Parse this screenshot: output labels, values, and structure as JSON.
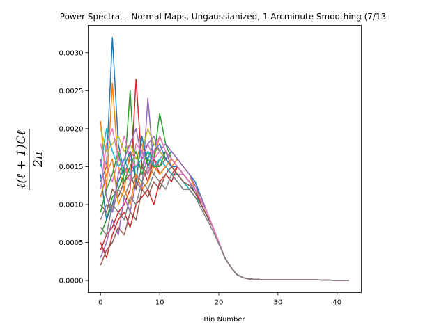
{
  "chart_data": {
    "type": "line",
    "title": "Power Spectra -- Normal Maps, Ungaussianized, 1 Arcminute Smoothing (7/13",
    "xlabel": "Bin Number",
    "ylabel": "ℓ(ℓ+1)Cℓ / 2π",
    "ylabel_numerator": "ℓ(ℓ + 1)Cℓ",
    "ylabel_denominator": "2π",
    "xlim": [
      -2.1,
      44.1
    ],
    "ylim": [
      -0.00016,
      0.00336
    ],
    "xticks": [
      0,
      10,
      20,
      30,
      40
    ],
    "xtick_labels": [
      "0",
      "10",
      "20",
      "30",
      "40"
    ],
    "yticks": [
      0.0,
      0.0005,
      0.001,
      0.0015,
      0.002,
      0.0025,
      0.003
    ],
    "ytick_labels": [
      "0.0000",
      "0.0005",
      "0.0010",
      "0.0015",
      "0.0020",
      "0.0025",
      "0.0030"
    ],
    "grid": false,
    "colors": [
      "#1f77b4",
      "#ff7f0e",
      "#2ca02c",
      "#d62728",
      "#9467bd",
      "#8c564b",
      "#e377c2",
      "#7f7f7f",
      "#bcbd22",
      "#17becf"
    ],
    "x": [
      0,
      1,
      2,
      3,
      4,
      5,
      6,
      7,
      8,
      9,
      10,
      11,
      12,
      13,
      14,
      15,
      16,
      17,
      18,
      19,
      20,
      21,
      22,
      23,
      24,
      25,
      26,
      27,
      28,
      29,
      30,
      31,
      32,
      33,
      34,
      35,
      36,
      37,
      38,
      39,
      40,
      41,
      42
    ],
    "series": [
      {
        "values": [
          0.0013,
          0.0015,
          0.0032,
          0.0018,
          0.0014,
          0.0016,
          0.0015,
          0.0017,
          0.0016,
          0.0018,
          0.0017,
          0.0016,
          0.0017,
          0.0016,
          0.0015,
          0.0014,
          0.0013,
          0.0011,
          0.0009,
          0.0007,
          0.0005,
          0.0003,
          0.00018,
          8e-05,
          4e-05,
          2e-05,
          1.5e-05,
          1.2e-05,
          1e-05,
          1e-05,
          9e-06,
          8e-06,
          8e-06,
          8e-06,
          8e-06,
          8e-06,
          8e-06,
          7e-06,
          5e-06,
          3e-06,
          2e-06,
          2e-06,
          2e-06
        ]
      },
      {
        "values": [
          0.0021,
          0.0012,
          0.0026,
          0.0015,
          0.0012,
          0.0017,
          0.0016,
          0.0018,
          0.0015,
          0.0016,
          0.0019,
          0.0017,
          0.0015,
          0.0016,
          0.0015,
          0.0014,
          0.0012,
          0.0011,
          0.0009,
          0.0007,
          0.0005,
          0.0003,
          0.00018,
          8e-05,
          4e-05,
          2e-05,
          1.5e-05,
          1.2e-05,
          1e-05,
          1e-05,
          9e-06,
          8e-06,
          8e-06,
          8e-06,
          8e-06,
          8e-06,
          8e-06,
          7e-06,
          5e-06,
          3e-06,
          2e-06,
          2e-06,
          2e-06
        ]
      },
      {
        "values": [
          0.0006,
          0.0008,
          0.0011,
          0.0012,
          0.0014,
          0.0025,
          0.0012,
          0.0015,
          0.0017,
          0.0016,
          0.0022,
          0.0018,
          0.0016,
          0.0015,
          0.0014,
          0.0013,
          0.0012,
          0.0011,
          0.0009,
          0.0007,
          0.0005,
          0.0003,
          0.00018,
          8e-05,
          4e-05,
          2e-05,
          1.5e-05,
          1.2e-05,
          1e-05,
          1e-05,
          9e-06,
          8e-06,
          8e-06,
          8e-06,
          8e-06,
          8e-06,
          8e-06,
          7e-06,
          5e-06,
          3e-06,
          2e-06,
          2e-06,
          2e-06
        ]
      },
      {
        "values": [
          0.0004,
          0.0006,
          0.0007,
          0.0009,
          0.001,
          0.0012,
          0.00265,
          0.0015,
          0.0013,
          0.0016,
          0.0014,
          0.0015,
          0.0014,
          0.0015,
          0.0014,
          0.0013,
          0.0012,
          0.001,
          0.00085,
          0.0007,
          0.0005,
          0.0003,
          0.00018,
          8e-05,
          4e-05,
          2e-05,
          1.5e-05,
          1.2e-05,
          1e-05,
          1e-05,
          9e-06,
          8e-06,
          8e-06,
          8e-06,
          8e-06,
          8e-06,
          8e-06,
          7e-06,
          5e-06,
          3e-06,
          2e-06,
          2e-06,
          2e-06
        ]
      },
      {
        "values": [
          0.0003,
          0.0005,
          0.0008,
          0.0006,
          0.0011,
          0.0009,
          0.0013,
          0.0012,
          0.0024,
          0.0015,
          0.0016,
          0.0017,
          0.0015,
          0.0014,
          0.0013,
          0.0012,
          0.0011,
          0.001,
          0.00085,
          0.0007,
          0.0005,
          0.0003,
          0.00018,
          8e-05,
          4e-05,
          2e-05,
          1.5e-05,
          1.2e-05,
          1e-05,
          1e-05,
          9e-06,
          8e-06,
          8e-06,
          8e-06,
          8e-06,
          8e-06,
          8e-06,
          7e-06,
          5e-06,
          3e-06,
          2e-06,
          2e-06,
          2e-06
        ]
      },
      {
        "values": [
          0.001,
          0.0009,
          0.0012,
          0.0011,
          0.0013,
          0.0014,
          0.0012,
          0.0015,
          0.0014,
          0.0016,
          0.0015,
          0.0016,
          0.0015,
          0.0014,
          0.0013,
          0.0012,
          0.0011,
          0.001,
          0.00085,
          0.0007,
          0.0005,
          0.0003,
          0.00018,
          8e-05,
          4e-05,
          2e-05,
          1.5e-05,
          1.2e-05,
          1e-05,
          1e-05,
          9e-06,
          8e-06,
          8e-06,
          8e-06,
          8e-06,
          8e-06,
          8e-06,
          7e-06,
          5e-06,
          3e-06,
          2e-06,
          2e-06,
          2e-06
        ]
      },
      {
        "values": [
          0.0018,
          0.0015,
          0.0013,
          0.0016,
          0.0019,
          0.0016,
          0.0015,
          0.0017,
          0.0018,
          0.0016,
          0.0017,
          0.0016,
          0.0015,
          0.0014,
          0.0014,
          0.0013,
          0.0012,
          0.00105,
          0.0009,
          0.0007,
          0.0005,
          0.0003,
          0.00018,
          8e-05,
          4e-05,
          2e-05,
          1.5e-05,
          1.2e-05,
          1e-05,
          1e-05,
          9e-06,
          8e-06,
          8e-06,
          8e-06,
          8e-06,
          8e-06,
          8e-06,
          7e-06,
          5e-06,
          3e-06,
          2e-06,
          2e-06,
          2e-06
        ]
      },
      {
        "values": [
          0.0008,
          0.001,
          0.0009,
          0.0012,
          0.0011,
          0.0013,
          0.0014,
          0.0013,
          0.0015,
          0.0014,
          0.0016,
          0.0015,
          0.0014,
          0.0013,
          0.0012,
          0.0012,
          0.0011,
          0.001,
          0.00085,
          0.0007,
          0.0005,
          0.0003,
          0.00018,
          8e-05,
          4e-05,
          2e-05,
          1.5e-05,
          1.2e-05,
          1e-05,
          1e-05,
          9e-06,
          8e-06,
          8e-06,
          8e-06,
          8e-06,
          8e-06,
          8e-06,
          7e-06,
          5e-06,
          3e-06,
          2e-06,
          2e-06,
          2e-06
        ]
      },
      {
        "values": [
          0.002,
          0.0017,
          0.0018,
          0.0019,
          0.0017,
          0.0018,
          0.0016,
          0.0017,
          0.002,
          0.0018,
          0.0017,
          0.0016,
          0.0015,
          0.0014,
          0.0013,
          0.0012,
          0.0011,
          0.001,
          0.00085,
          0.0007,
          0.0005,
          0.0003,
          0.00018,
          8e-05,
          4e-05,
          2e-05,
          1.5e-05,
          1.2e-05,
          1e-05,
          1e-05,
          9e-06,
          8e-06,
          8e-06,
          8e-06,
          8e-06,
          8e-06,
          8e-06,
          7e-06,
          5e-06,
          3e-06,
          2e-06,
          2e-06,
          2e-06
        ]
      },
      {
        "values": [
          0.0015,
          0.002,
          0.0017,
          0.0015,
          0.0016,
          0.0014,
          0.0015,
          0.0016,
          0.0017,
          0.0015,
          0.0016,
          0.0015,
          0.0014,
          0.0014,
          0.0013,
          0.0012,
          0.0011,
          0.001,
          0.00085,
          0.0007,
          0.0005,
          0.0003,
          0.00018,
          8e-05,
          4e-05,
          2e-05,
          1.5e-05,
          1.2e-05,
          1e-05,
          1e-05,
          9e-06,
          8e-06,
          8e-06,
          8e-06,
          8e-06,
          8e-06,
          8e-06,
          7e-06,
          5e-06,
          3e-06,
          2e-06,
          2e-06,
          2e-06
        ]
      },
      {
        "values": [
          0.0014,
          0.0008,
          0.001,
          0.0013,
          0.0015,
          0.0017,
          0.0013,
          0.0019,
          0.0015,
          0.0017,
          0.0018,
          0.0016,
          0.0015,
          0.0015,
          0.0014,
          0.0013,
          0.00115,
          0.001,
          0.00085,
          0.0007,
          0.0005,
          0.0003,
          0.00018,
          8e-05,
          4e-05,
          2e-05,
          1.5e-05,
          1.2e-05,
          1e-05,
          1e-05,
          9e-06,
          8e-06,
          8e-06,
          8e-06,
          8e-06,
          8e-06,
          8e-06,
          7e-06,
          5e-06,
          3e-06,
          2e-06,
          2e-06,
          2e-06
        ]
      },
      {
        "values": [
          0.0011,
          0.0014,
          0.0016,
          0.001,
          0.0012,
          0.001,
          0.0014,
          0.0012,
          0.0013,
          0.0015,
          0.0014,
          0.0015,
          0.0016,
          0.0015,
          0.0014,
          0.0013,
          0.0012,
          0.00105,
          0.0009,
          0.0007,
          0.0005,
          0.0003,
          0.00018,
          8e-05,
          4e-05,
          2e-05,
          1.5e-05,
          1.2e-05,
          1e-05,
          1e-05,
          9e-06,
          8e-06,
          8e-06,
          8e-06,
          8e-06,
          8e-06,
          8e-06,
          7e-06,
          5e-06,
          3e-06,
          2e-06,
          2e-06,
          2e-06
        ]
      },
      {
        "values": [
          0.0009,
          0.0012,
          0.0014,
          0.0017,
          0.0013,
          0.0015,
          0.0017,
          0.0014,
          0.0016,
          0.0015,
          0.0015,
          0.0017,
          0.0016,
          0.0015,
          0.0014,
          0.0013,
          0.0012,
          0.00105,
          0.0009,
          0.0007,
          0.0005,
          0.0003,
          0.00018,
          8e-05,
          4e-05,
          2e-05,
          1.5e-05,
          1.2e-05,
          1e-05,
          1e-05,
          9e-06,
          8e-06,
          8e-06,
          8e-06,
          8e-06,
          8e-06,
          8e-06,
          7e-06,
          5e-06,
          3e-06,
          2e-06,
          2e-06,
          2e-06
        ]
      },
      {
        "values": [
          0.0005,
          0.0003,
          0.0006,
          0.0008,
          0.0009,
          0.0007,
          0.001,
          0.0011,
          0.0012,
          0.001,
          0.0013,
          0.0014,
          0.0013,
          0.0015,
          0.0014,
          0.0013,
          0.0012,
          0.001,
          0.00085,
          0.0007,
          0.0005,
          0.0003,
          0.00018,
          8e-05,
          4e-05,
          2e-05,
          1.5e-05,
          1.2e-05,
          1e-05,
          1e-05,
          9e-06,
          8e-06,
          8e-06,
          8e-06,
          8e-06,
          8e-06,
          8e-06,
          7e-06,
          5e-06,
          3e-06,
          2e-06,
          2e-06,
          2e-06
        ]
      },
      {
        "values": [
          0.0016,
          0.0011,
          0.0009,
          0.0014,
          0.0016,
          0.0018,
          0.002,
          0.0016,
          0.0018,
          0.0019,
          0.0017,
          0.0018,
          0.0017,
          0.0016,
          0.0015,
          0.0014,
          0.00125,
          0.0011,
          0.0009,
          0.0007,
          0.0005,
          0.0003,
          0.00018,
          8e-05,
          4e-05,
          2e-05,
          1.5e-05,
          1.2e-05,
          1e-05,
          1e-05,
          9e-06,
          8e-06,
          8e-06,
          8e-06,
          8e-06,
          8e-06,
          8e-06,
          7e-06,
          5e-06,
          3e-06,
          2e-06,
          2e-06,
          2e-06
        ]
      },
      {
        "values": [
          0.0002,
          0.0004,
          0.0005,
          0.0007,
          0.0006,
          0.0009,
          0.0008,
          0.0012,
          0.0011,
          0.0013,
          0.0012,
          0.0014,
          0.0015,
          0.0014,
          0.0013,
          0.00125,
          0.00115,
          0.001,
          0.00085,
          0.0007,
          0.0005,
          0.0003,
          0.00018,
          8e-05,
          4e-05,
          2e-05,
          1.5e-05,
          1.2e-05,
          1e-05,
          1e-05,
          9e-06,
          8e-06,
          8e-06,
          8e-06,
          8e-06,
          8e-06,
          8e-06,
          7e-06,
          5e-06,
          3e-06,
          2e-06,
          2e-06,
          2e-06
        ]
      },
      {
        "values": [
          0.0012,
          0.0018,
          0.002,
          0.0016,
          0.0015,
          0.0013,
          0.0018,
          0.0017,
          0.0014,
          0.0017,
          0.0019,
          0.0017,
          0.0016,
          0.0015,
          0.0014,
          0.0013,
          0.0012,
          0.00105,
          0.0009,
          0.0007,
          0.0005,
          0.0003,
          0.00018,
          8e-05,
          4e-05,
          2e-05,
          1.5e-05,
          1.2e-05,
          1e-05,
          1e-05,
          9e-06,
          8e-06,
          8e-06,
          8e-06,
          8e-06,
          8e-06,
          8e-06,
          7e-06,
          5e-06,
          3e-06,
          2e-06,
          2e-06,
          2e-06
        ]
      },
      {
        "values": [
          0.0007,
          0.0006,
          0.001,
          0.0009,
          0.0008,
          0.0011,
          0.001,
          0.0013,
          0.0012,
          0.0014,
          0.0013,
          0.0012,
          0.0014,
          0.0013,
          0.0012,
          0.0012,
          0.0011,
          0.00095,
          0.0008,
          0.00065,
          0.00048,
          0.0003,
          0.00018,
          8e-05,
          4e-05,
          2e-05,
          1.5e-05,
          1.2e-05,
          1e-05,
          1e-05,
          9e-06,
          8e-06,
          8e-06,
          8e-06,
          8e-06,
          8e-06,
          8e-06,
          7e-06,
          5e-06,
          3e-06,
          2e-06,
          2e-06,
          2e-06
        ]
      }
    ]
  }
}
